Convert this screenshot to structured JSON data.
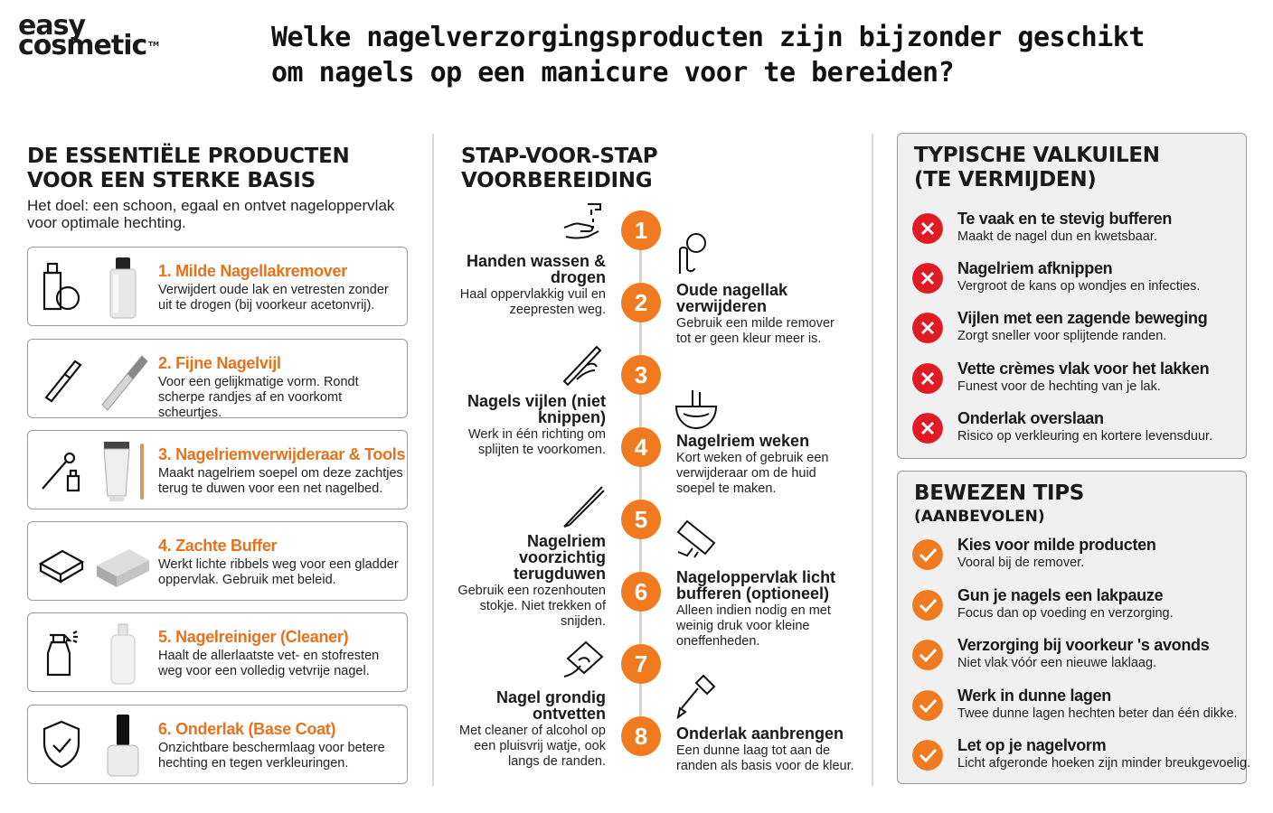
{
  "logo": {
    "line1": "easy",
    "line2": "cosmetic",
    "tm": "TM"
  },
  "title": "Welke nagelverzorgingsproducten zijn bijzonder geschikt om nagels op een manicure voor te bereiden?",
  "left": {
    "heading": "DE ESSENTIËLE PRODUCTEN VOOR EEN STERKE BASIS",
    "subtitle": "Het doel: een schoon, egaal en ontvet nageloppervlak voor optimale hechting.",
    "products": [
      {
        "title": "1. Milde Nagellakremover",
        "desc": "Verwijdert oude lak en vetresten zonder uit te drogen (bij voorkeur acetonvrij).",
        "icon": "remover-bottle-icon"
      },
      {
        "title": "2. Fijne Nagelvijl",
        "desc": "Voor een gelijkmatige vorm. Rondt scherpe randjes af en voorkomt scheurtjes.",
        "icon": "nail-file-icon"
      },
      {
        "title": "3. Nagelriemverwijderaar & Tools",
        "desc": "Maakt nagelriem soepel om deze zachtjes terug te duwen voor een net nagelbed.",
        "icon": "cuticle-tools-icon"
      },
      {
        "title": "4. Zachte Buffer",
        "desc": "Werkt lichte ribbels weg voor een gladder oppervlak. Gebruik met beleid.",
        "icon": "buffer-block-icon"
      },
      {
        "title": "5. Nagelreiniger (Cleaner)",
        "desc": "Haalt de allerlaatste vet- en stofresten weg voor een volledig vetvrije nagel.",
        "icon": "spray-bottle-icon"
      },
      {
        "title": "6. Onderlak (Base Coat)",
        "desc": "Onzichtbare beschermlaag voor betere hechting en tegen verkleuringen.",
        "icon": "shield-check-icon"
      }
    ]
  },
  "middle": {
    "heading": "STAP-VOOR-STAP VOORBEREIDING",
    "steps": [
      {
        "num": "1",
        "title": "Handen wassen & drogen",
        "desc": "Haal oppervlakkig vuil en zeepresten weg.",
        "icon": "hand-wash-icon"
      },
      {
        "num": "2",
        "title": "Oude nagellak verwijderen",
        "desc": "Gebruik een milde remover tot er geen kleur meer is.",
        "icon": "cotton-pad-finger-icon"
      },
      {
        "num": "3",
        "title": "Nagels vijlen (niet knippen)",
        "desc": "Werk in één richting om splijten te voorkomen.",
        "icon": "filing-nail-icon"
      },
      {
        "num": "4",
        "title": "Nagelriem weken",
        "desc": "Kort weken of gebruik een verwijderaar om de huid soepel te maken.",
        "icon": "soak-bowl-icon"
      },
      {
        "num": "5",
        "title": "Nagelriem voorzichtig terugduwen",
        "desc": "Gebruik een rozenhouten stokje. Niet trekken of snijden.",
        "icon": "orange-stick-icon"
      },
      {
        "num": "6",
        "title": "Nageloppervlak licht bufferen (optioneel)",
        "desc": "Alleen indien nodig en met weinig druk voor kleine oneffenheden.",
        "icon": "buffer-nail-icon"
      },
      {
        "num": "7",
        "title": "Nagel grondig ontvetten",
        "desc": "Met cleaner of alcohol op een pluisvrij watje, ook langs de randen.",
        "icon": "wipe-nail-icon"
      },
      {
        "num": "8",
        "title": "Onderlak aanbrengen",
        "desc": "Een dunne laag tot aan de randen als basis voor de kleur.",
        "icon": "polish-brush-icon"
      }
    ]
  },
  "pitfalls": {
    "heading": "TYPISCHE VALKUILEN (TE VERMIJDEN)",
    "items": [
      {
        "title": "Te vaak en te stevig bufferen",
        "desc": "Maakt de nagel dun en kwetsbaar."
      },
      {
        "title": "Nagelriem afknippen",
        "desc": "Vergroot de kans op wondjes en infecties."
      },
      {
        "title": "Vijlen met een zagende beweging",
        "desc": "Zorgt sneller voor splijtende randen."
      },
      {
        "title": "Vette crèmes vlak voor het lakken",
        "desc": "Funest voor de hechting van je lak."
      },
      {
        "title": "Onderlak overslaan",
        "desc": "Risico op verkleuring en kortere levensduur."
      }
    ]
  },
  "tips": {
    "heading": "BEWEZEN TIPS",
    "subheading": "(AANBEVOLEN)",
    "items": [
      {
        "title": "Kies voor milde producten",
        "desc": "Vooral bij de remover."
      },
      {
        "title": "Gun je nagels een lakpauze",
        "desc": "Focus dan op voeding en verzorging."
      },
      {
        "title": "Verzorging bij voorkeur 's avonds",
        "desc": "Niet vlak vóór een nieuwe laklaag."
      },
      {
        "title": "Werk in dunne lagen",
        "desc": "Twee dunne lagen hechten beter dan één dikke."
      },
      {
        "title": "Let op je nagelvorm",
        "desc": "Licht afgeronde hoeken zijn minder breukgevoelig."
      }
    ]
  },
  "colors": {
    "accent": "#f07a1f",
    "danger": "#e01b24",
    "box_bg": "#f0f0f0",
    "border": "#9a9a9a"
  }
}
